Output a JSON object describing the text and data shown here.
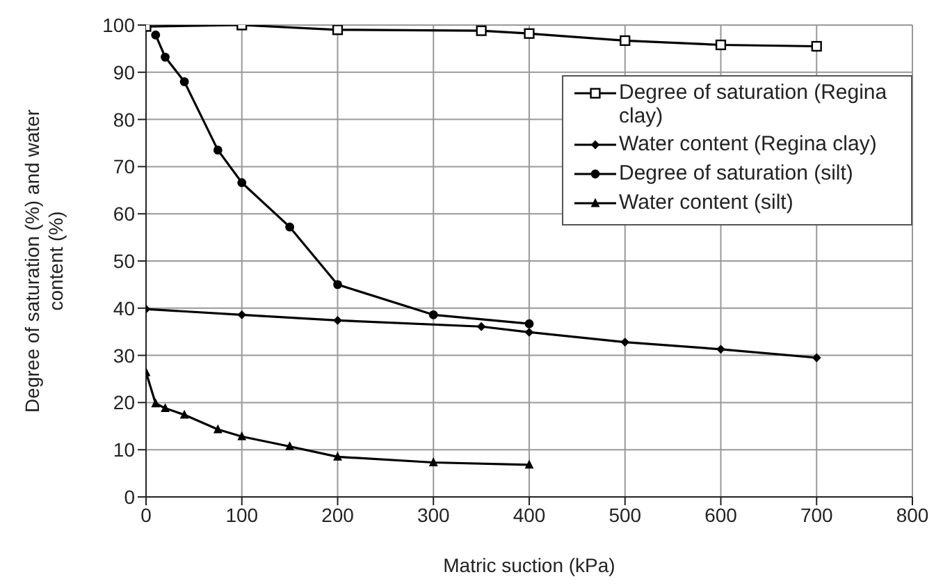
{
  "chart_data": {
    "type": "line",
    "xlabel": "Matric suction (kPa)",
    "ylabel": "Degree of saturation (%) and water content (%)",
    "xlim": [
      0,
      800
    ],
    "xticks": [
      0,
      100,
      200,
      300,
      400,
      500,
      600,
      700,
      800
    ],
    "ylim": [
      0,
      100
    ],
    "yticks": [
      0,
      10,
      20,
      30,
      40,
      50,
      60,
      70,
      80,
      90,
      100
    ],
    "grid": true,
    "legend": "top right",
    "line_style": "solid",
    "series": [
      {
        "name": "Degree of saturation (Regina clay)",
        "color": "#000000",
        "marker": "square",
        "x": [
          0,
          100,
          200,
          350,
          400,
          500,
          600,
          700
        ],
        "values": [
          99.7,
          100,
          99,
          98.8,
          98.2,
          96.7,
          95.8,
          95.5
        ]
      },
      {
        "name": "Water content (Regina clay)",
        "color": "#000000",
        "marker": "diamond",
        "x": [
          0,
          100,
          200,
          350,
          400,
          500,
          600,
          700
        ],
        "values": [
          39.8,
          38.6,
          37.4,
          36.1,
          34.9,
          32.8,
          31.3,
          29.5
        ]
      },
      {
        "name": "Degree of saturation (silt)",
        "color": "#000000",
        "marker": "circle",
        "x": [
          10,
          20,
          40,
          75,
          100,
          150,
          200,
          300,
          400
        ],
        "values": [
          97.9,
          93.2,
          88,
          73.5,
          66.6,
          57.2,
          45,
          38.6,
          36.7
        ]
      },
      {
        "name": "Water content (silt)",
        "color": "#000000",
        "marker": "triangle",
        "x": [
          0,
          10,
          20,
          40,
          75,
          100,
          150,
          200,
          300,
          400
        ],
        "values": [
          26.4,
          19.8,
          18.8,
          17.4,
          14.3,
          12.8,
          10.7,
          8.5,
          7.3,
          6.8
        ]
      }
    ]
  }
}
